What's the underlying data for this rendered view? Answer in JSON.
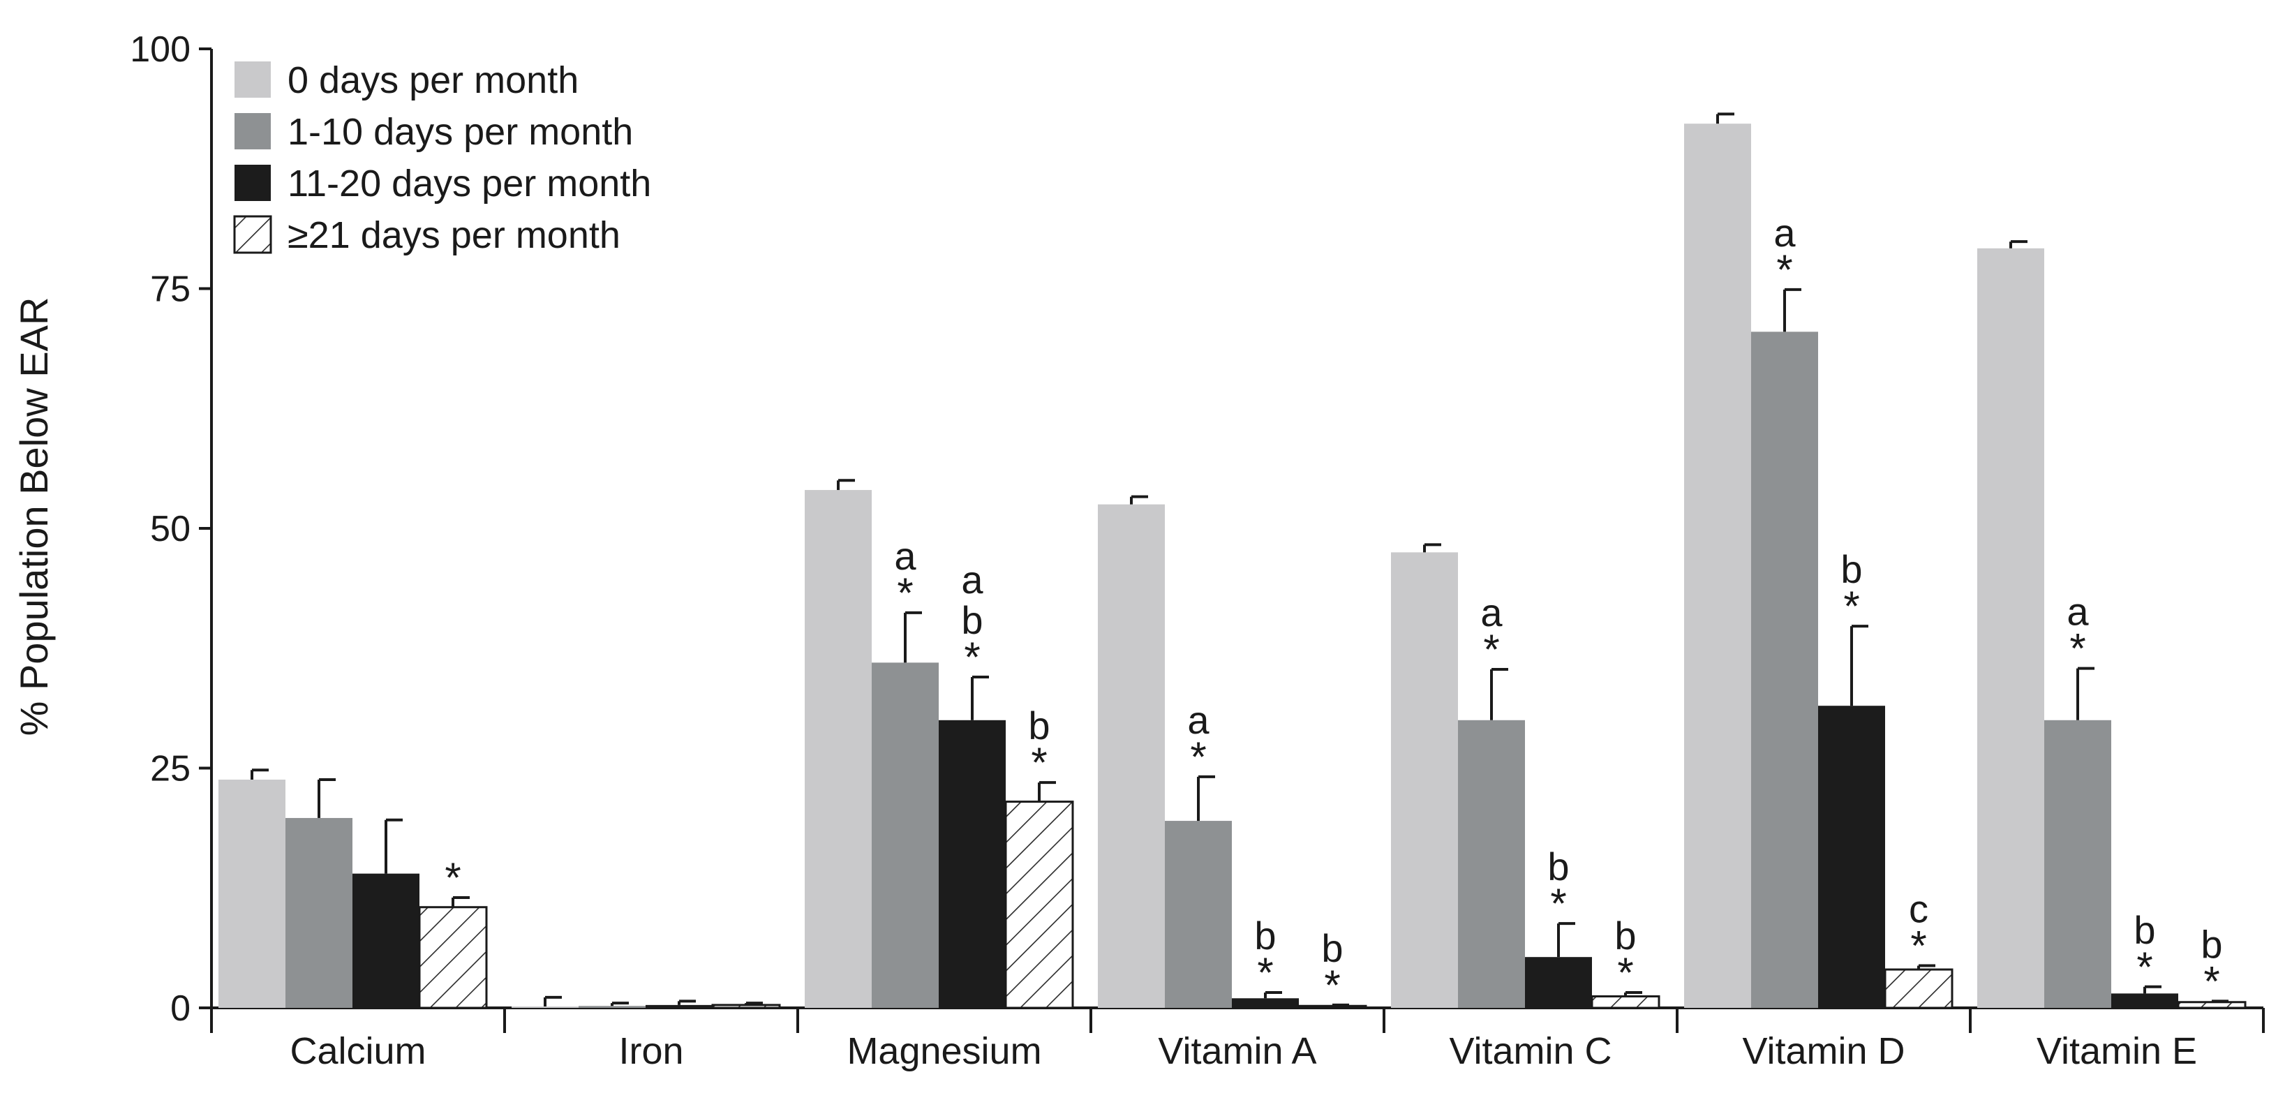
{
  "chart_data": {
    "type": "bar",
    "title": "",
    "xlabel": "",
    "ylabel": "% Population Below EAR",
    "ylim": [
      0,
      100
    ],
    "yticks": [
      0,
      25,
      50,
      75,
      100
    ],
    "grid": false,
    "legend_position": "top-left",
    "categories": [
      "Calcium",
      "Iron",
      "Magnesium",
      "Vitamin A",
      "Vitamin C",
      "Vitamin D",
      "Vitamin E"
    ],
    "series": [
      {
        "name": "0 days per month",
        "color": "#c9c9cb",
        "pattern": "solid",
        "values": [
          23.8,
          0.1,
          54.0,
          52.5,
          47.5,
          92.2,
          79.2
        ],
        "errors": [
          1.0,
          1.0,
          1.0,
          0.8,
          0.8,
          1.0,
          0.7
        ],
        "labels": [
          "",
          "",
          "",
          "",
          "",
          "",
          ""
        ]
      },
      {
        "name": "1-10 days per month",
        "color": "#8e9193",
        "pattern": "solid",
        "values": [
          19.8,
          0.2,
          36.0,
          19.5,
          30.0,
          70.5,
          30.0
        ],
        "errors": [
          4.0,
          0.3,
          5.2,
          4.6,
          5.3,
          4.4,
          5.4
        ],
        "labels": [
          "",
          "",
          "a*",
          "a*",
          "a*",
          "a*",
          "a*"
        ]
      },
      {
        "name": "11-20 days per month",
        "color": "#1c1c1c",
        "pattern": "solid",
        "values": [
          14.0,
          0.3,
          30.0,
          1.0,
          5.3,
          31.5,
          1.5
        ],
        "errors": [
          5.6,
          0.4,
          4.5,
          0.6,
          3.5,
          8.3,
          0.7
        ],
        "labels": [
          "",
          "",
          "ab*",
          "b*",
          "b*",
          "b*",
          "b*"
        ]
      },
      {
        "name": "≥21 days per month",
        "color": "#ffffff",
        "pattern": "hatch",
        "values": [
          10.5,
          0.3,
          21.5,
          0.2,
          1.2,
          4.0,
          0.6
        ],
        "errors": [
          1.0,
          0.2,
          2.0,
          0.1,
          0.4,
          0.4,
          0.1
        ],
        "labels": [
          "*",
          "",
          "b*",
          "b*",
          "b*",
          "c*",
          "b*"
        ]
      }
    ]
  }
}
